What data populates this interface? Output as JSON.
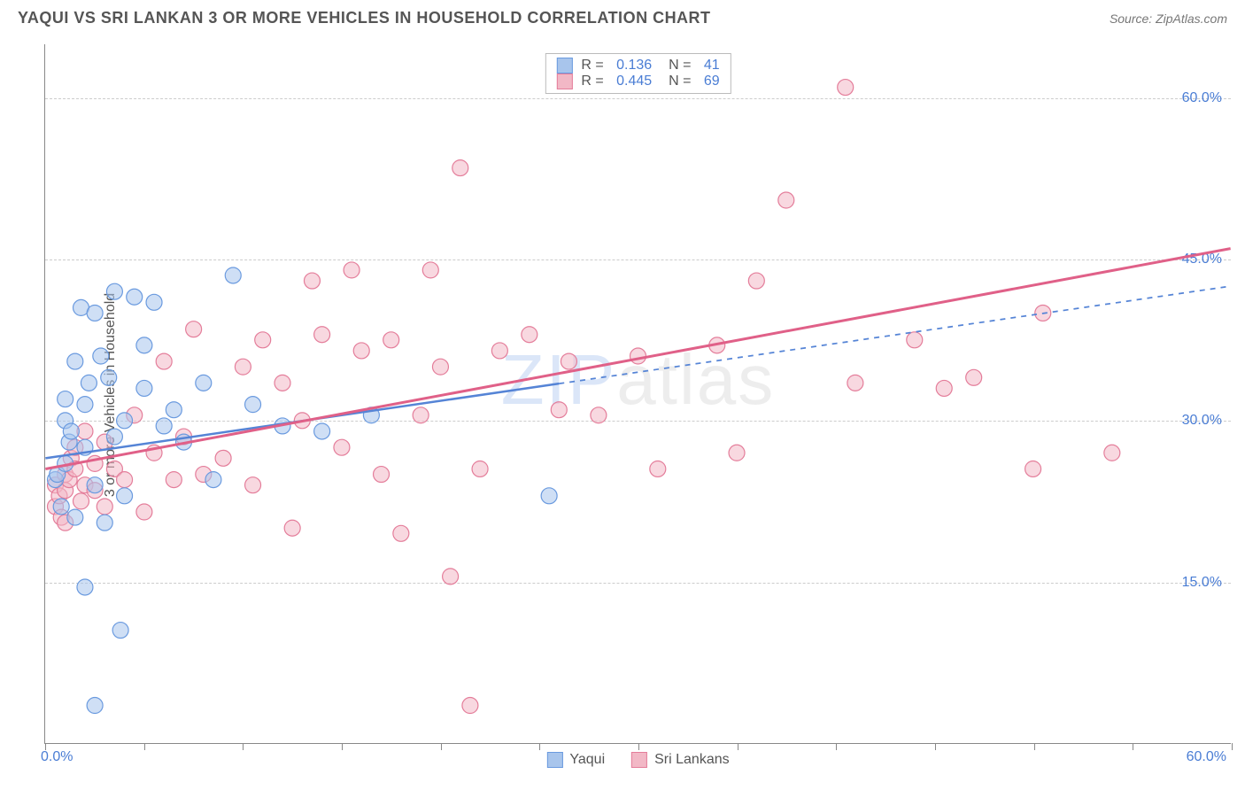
{
  "title": "YAQUI VS SRI LANKAN 3 OR MORE VEHICLES IN HOUSEHOLD CORRELATION CHART",
  "source": "Source: ZipAtlas.com",
  "ylabel": "3 or more Vehicles in Household",
  "watermark_a": "ZIP",
  "watermark_b": "atlas",
  "chart": {
    "type": "scatter",
    "x_range": [
      0,
      60
    ],
    "y_range": [
      0,
      65
    ],
    "x_ticks": [
      0,
      5,
      10,
      15,
      20,
      25,
      30,
      35,
      40,
      45,
      50,
      55,
      60
    ],
    "x_labels": [
      {
        "v": 0,
        "t": "0.0%"
      },
      {
        "v": 60,
        "t": "60.0%"
      }
    ],
    "y_gridlines": [
      15,
      30,
      45,
      60
    ],
    "y_labels": [
      "15.0%",
      "30.0%",
      "45.0%",
      "60.0%"
    ],
    "grid_color": "#cccccc",
    "background": "#ffffff",
    "label_color": "#4a7dd4",
    "axis_color": "#888888",
    "marker_radius": 9,
    "marker_opacity": 0.55,
    "series": [
      {
        "name": "Yaqui",
        "fill": "#a8c5ec",
        "stroke": "#6a9adf",
        "R": "0.136",
        "N": "41",
        "trend": {
          "x1": 0,
          "y1": 26.5,
          "x2": 60,
          "y2": 42.5,
          "solid_until_x": 26,
          "line_color": "#5584d6",
          "line_width": 2.5,
          "dash": "6,6"
        },
        "points": [
          [
            0.5,
            24.5
          ],
          [
            0.6,
            25.0
          ],
          [
            0.8,
            22.0
          ],
          [
            1.0,
            26.0
          ],
          [
            1.0,
            30.0
          ],
          [
            1.0,
            32.0
          ],
          [
            1.2,
            28.0
          ],
          [
            1.3,
            29.0
          ],
          [
            1.5,
            35.5
          ],
          [
            1.5,
            21.0
          ],
          [
            1.8,
            40.5
          ],
          [
            2.0,
            31.5
          ],
          [
            2.0,
            27.5
          ],
          [
            2.0,
            14.5
          ],
          [
            2.2,
            33.5
          ],
          [
            2.5,
            40.0
          ],
          [
            2.5,
            24.0
          ],
          [
            2.5,
            3.5
          ],
          [
            2.8,
            36.0
          ],
          [
            3.0,
            20.5
          ],
          [
            3.2,
            34.0
          ],
          [
            3.5,
            42.0
          ],
          [
            3.5,
            28.5
          ],
          [
            3.8,
            10.5
          ],
          [
            4.0,
            30.0
          ],
          [
            4.0,
            23.0
          ],
          [
            4.5,
            41.5
          ],
          [
            5.0,
            37.0
          ],
          [
            5.0,
            33.0
          ],
          [
            5.5,
            41.0
          ],
          [
            6.0,
            29.5
          ],
          [
            6.5,
            31.0
          ],
          [
            7.0,
            28.0
          ],
          [
            8.0,
            33.5
          ],
          [
            8.5,
            24.5
          ],
          [
            9.5,
            43.5
          ],
          [
            10.5,
            31.5
          ],
          [
            12.0,
            29.5
          ],
          [
            14.0,
            29.0
          ],
          [
            16.5,
            30.5
          ],
          [
            25.5,
            23.0
          ]
        ]
      },
      {
        "name": "Sri Lankans",
        "fill": "#f2b8c6",
        "stroke": "#e47d9a",
        "R": "0.445",
        "N": "69",
        "trend": {
          "x1": 0,
          "y1": 25.5,
          "x2": 60,
          "y2": 46.0,
          "solid_until_x": 60,
          "line_color": "#e06088",
          "line_width": 3,
          "dash": ""
        },
        "points": [
          [
            0.5,
            22.0
          ],
          [
            0.5,
            24.0
          ],
          [
            0.7,
            23.0
          ],
          [
            0.8,
            21.0
          ],
          [
            1.0,
            23.5
          ],
          [
            1.0,
            25.0
          ],
          [
            1.0,
            20.5
          ],
          [
            1.2,
            24.5
          ],
          [
            1.3,
            26.5
          ],
          [
            1.5,
            25.5
          ],
          [
            1.5,
            27.5
          ],
          [
            1.8,
            22.5
          ],
          [
            2.0,
            24.0
          ],
          [
            2.0,
            29.0
          ],
          [
            2.5,
            26.0
          ],
          [
            2.5,
            23.5
          ],
          [
            3.0,
            22.0
          ],
          [
            3.0,
            28.0
          ],
          [
            3.5,
            25.5
          ],
          [
            4.0,
            24.5
          ],
          [
            4.5,
            30.5
          ],
          [
            5.0,
            21.5
          ],
          [
            5.5,
            27.0
          ],
          [
            6.0,
            35.5
          ],
          [
            6.5,
            24.5
          ],
          [
            7.0,
            28.5
          ],
          [
            7.5,
            38.5
          ],
          [
            8.0,
            25.0
          ],
          [
            9.0,
            26.5
          ],
          [
            10.0,
            35.0
          ],
          [
            10.5,
            24.0
          ],
          [
            11.0,
            37.5
          ],
          [
            12.0,
            33.5
          ],
          [
            12.5,
            20.0
          ],
          [
            13.0,
            30.0
          ],
          [
            13.5,
            43.0
          ],
          [
            14.0,
            38.0
          ],
          [
            15.0,
            27.5
          ],
          [
            15.5,
            44.0
          ],
          [
            16.0,
            36.5
          ],
          [
            17.0,
            25.0
          ],
          [
            17.5,
            37.5
          ],
          [
            18.0,
            19.5
          ],
          [
            19.0,
            30.5
          ],
          [
            19.5,
            44.0
          ],
          [
            20.0,
            35.0
          ],
          [
            20.5,
            15.5
          ],
          [
            21.0,
            53.5
          ],
          [
            21.5,
            3.5
          ],
          [
            22.0,
            25.5
          ],
          [
            23.0,
            36.5
          ],
          [
            24.5,
            38.0
          ],
          [
            26.0,
            31.0
          ],
          [
            26.5,
            35.5
          ],
          [
            28.0,
            30.5
          ],
          [
            30.0,
            36.0
          ],
          [
            31.0,
            25.5
          ],
          [
            34.0,
            37.0
          ],
          [
            35.0,
            27.0
          ],
          [
            36.0,
            43.0
          ],
          [
            37.5,
            50.5
          ],
          [
            40.5,
            61.0
          ],
          [
            41.0,
            33.5
          ],
          [
            44.0,
            37.5
          ],
          [
            45.5,
            33.0
          ],
          [
            47.0,
            34.0
          ],
          [
            50.0,
            25.5
          ],
          [
            50.5,
            40.0
          ],
          [
            54.0,
            27.0
          ]
        ]
      }
    ]
  },
  "legend": [
    {
      "swatch_fill": "#a8c5ec",
      "swatch_stroke": "#6a9adf",
      "label": "Yaqui"
    },
    {
      "swatch_fill": "#f2b8c6",
      "swatch_stroke": "#e47d9a",
      "label": "Sri Lankans"
    }
  ]
}
